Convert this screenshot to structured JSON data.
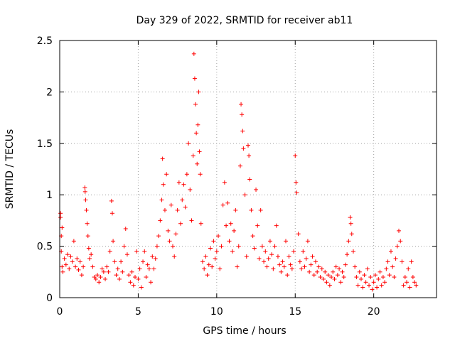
{
  "chart_data": {
    "type": "scatter",
    "title": "Day 329 of 2022, SRMTID for receiver ab11",
    "xlabel": "GPS time / hours",
    "ylabel": "SRMTID / TECUs",
    "xlim": [
      0,
      24
    ],
    "ylim": [
      0,
      2.5
    ],
    "grid": true,
    "marker": "+",
    "point_color": "#ff0000",
    "x_ticks": [
      0,
      5,
      10,
      15,
      20
    ],
    "x_tick_labels": [
      "0",
      "5",
      "10",
      "15",
      "20"
    ],
    "y_ticks": [
      0,
      0.5,
      1,
      1.5,
      2,
      2.5
    ],
    "y_tick_labels": [
      "0",
      "0.5",
      "1",
      "1.5",
      "2",
      "2.5"
    ],
    "series": [
      {
        "name": "ab11",
        "points": [
          [
            0.05,
            0.82
          ],
          [
            0.05,
            0.78
          ],
          [
            0.1,
            0.6
          ],
          [
            0.1,
            0.45
          ],
          [
            0.15,
            0.3
          ],
          [
            0.15,
            0.68
          ],
          [
            0.2,
            0.25
          ],
          [
            0.3,
            0.38
          ],
          [
            0.4,
            0.32
          ],
          [
            0.5,
            0.42
          ],
          [
            0.6,
            0.28
          ],
          [
            0.7,
            0.4
          ],
          [
            0.8,
            0.35
          ],
          [
            0.9,
            0.55
          ],
          [
            1.0,
            0.3
          ],
          [
            1.1,
            0.38
          ],
          [
            1.2,
            0.27
          ],
          [
            1.3,
            0.35
          ],
          [
            1.4,
            0.22
          ],
          [
            1.5,
            0.3
          ],
          [
            1.6,
            1.07
          ],
          [
            1.62,
            1.03
          ],
          [
            1.65,
            0.95
          ],
          [
            1.7,
            0.85
          ],
          [
            1.75,
            0.72
          ],
          [
            1.8,
            0.6
          ],
          [
            1.85,
            0.48
          ],
          [
            1.9,
            0.38
          ],
          [
            2.0,
            0.42
          ],
          [
            2.1,
            0.3
          ],
          [
            2.2,
            0.2
          ],
          [
            2.3,
            0.18
          ],
          [
            2.4,
            0.22
          ],
          [
            2.5,
            0.15
          ],
          [
            2.6,
            0.2
          ],
          [
            2.7,
            0.28
          ],
          [
            2.8,
            0.25
          ],
          [
            2.9,
            0.18
          ],
          [
            3.0,
            0.3
          ],
          [
            3.1,
            0.25
          ],
          [
            3.2,
            0.45
          ],
          [
            3.3,
            0.94
          ],
          [
            3.35,
            0.82
          ],
          [
            3.4,
            0.55
          ],
          [
            3.5,
            0.35
          ],
          [
            3.6,
            0.22
          ],
          [
            3.7,
            0.28
          ],
          [
            3.8,
            0.18
          ],
          [
            3.9,
            0.35
          ],
          [
            4.0,
            0.25
          ],
          [
            4.1,
            0.5
          ],
          [
            4.2,
            0.67
          ],
          [
            4.3,
            0.42
          ],
          [
            4.4,
            0.22
          ],
          [
            4.5,
            0.15
          ],
          [
            4.6,
            0.25
          ],
          [
            4.7,
            0.12
          ],
          [
            4.8,
            0.2
          ],
          [
            4.9,
            0.45
          ],
          [
            5.0,
            0.18
          ],
          [
            5.1,
            0.28
          ],
          [
            5.2,
            0.1
          ],
          [
            5.3,
            0.35
          ],
          [
            5.4,
            0.45
          ],
          [
            5.5,
            0.2
          ],
          [
            5.6,
            0.32
          ],
          [
            5.7,
            0.28
          ],
          [
            5.8,
            0.15
          ],
          [
            5.9,
            0.4
          ],
          [
            6.0,
            0.28
          ],
          [
            6.1,
            0.38
          ],
          [
            6.2,
            0.5
          ],
          [
            6.3,
            0.6
          ],
          [
            6.4,
            0.75
          ],
          [
            6.5,
            0.95
          ],
          [
            6.55,
            1.35
          ],
          [
            6.6,
            1.1
          ],
          [
            6.7,
            0.85
          ],
          [
            6.8,
            1.2
          ],
          [
            6.9,
            0.65
          ],
          [
            7.0,
            0.55
          ],
          [
            7.1,
            0.9
          ],
          [
            7.2,
            0.5
          ],
          [
            7.3,
            0.4
          ],
          [
            7.4,
            0.62
          ],
          [
            7.5,
            0.85
          ],
          [
            7.6,
            1.12
          ],
          [
            7.7,
            0.72
          ],
          [
            7.8,
            0.95
          ],
          [
            7.9,
            1.1
          ],
          [
            8.0,
            0.88
          ],
          [
            8.1,
            1.2
          ],
          [
            8.2,
            1.5
          ],
          [
            8.3,
            1.05
          ],
          [
            8.4,
            0.75
          ],
          [
            8.5,
            1.38
          ],
          [
            8.55,
            2.37
          ],
          [
            8.6,
            2.13
          ],
          [
            8.65,
            1.88
          ],
          [
            8.7,
            1.6
          ],
          [
            8.75,
            1.3
          ],
          [
            8.8,
            1.68
          ],
          [
            8.85,
            2.0
          ],
          [
            8.9,
            1.42
          ],
          [
            8.95,
            1.2
          ],
          [
            9.0,
            0.72
          ],
          [
            9.1,
            0.35
          ],
          [
            9.2,
            0.28
          ],
          [
            9.3,
            0.4
          ],
          [
            9.4,
            0.22
          ],
          [
            9.5,
            0.32
          ],
          [
            9.6,
            0.48
          ],
          [
            9.7,
            0.3
          ],
          [
            9.8,
            0.55
          ],
          [
            9.9,
            0.38
          ],
          [
            10.0,
            0.45
          ],
          [
            10.1,
            0.6
          ],
          [
            10.2,
            0.28
          ],
          [
            10.3,
            0.5
          ],
          [
            10.4,
            0.9
          ],
          [
            10.5,
            1.12
          ],
          [
            10.6,
            0.7
          ],
          [
            10.7,
            0.92
          ],
          [
            10.8,
            0.55
          ],
          [
            10.9,
            0.72
          ],
          [
            11.0,
            0.45
          ],
          [
            11.1,
            0.65
          ],
          [
            11.2,
            0.85
          ],
          [
            11.3,
            0.3
          ],
          [
            11.4,
            0.5
          ],
          [
            11.5,
            1.28
          ],
          [
            11.55,
            1.88
          ],
          [
            11.6,
            1.78
          ],
          [
            11.65,
            1.62
          ],
          [
            11.7,
            1.45
          ],
          [
            11.8,
            1.0
          ],
          [
            11.9,
            0.4
          ],
          [
            12.0,
            1.48
          ],
          [
            12.05,
            1.38
          ],
          [
            12.1,
            1.15
          ],
          [
            12.2,
            0.85
          ],
          [
            12.3,
            0.6
          ],
          [
            12.4,
            0.48
          ],
          [
            12.5,
            1.05
          ],
          [
            12.6,
            0.7
          ],
          [
            12.7,
            0.38
          ],
          [
            12.8,
            0.85
          ],
          [
            12.9,
            0.5
          ],
          [
            13.0,
            0.35
          ],
          [
            13.1,
            0.45
          ],
          [
            13.2,
            0.3
          ],
          [
            13.3,
            0.38
          ],
          [
            13.4,
            0.55
          ],
          [
            13.5,
            0.42
          ],
          [
            13.6,
            0.28
          ],
          [
            13.7,
            0.5
          ],
          [
            13.8,
            0.7
          ],
          [
            13.9,
            0.4
          ],
          [
            14.0,
            0.32
          ],
          [
            14.1,
            0.25
          ],
          [
            14.2,
            0.35
          ],
          [
            14.3,
            0.3
          ],
          [
            14.4,
            0.55
          ],
          [
            14.5,
            0.22
          ],
          [
            14.6,
            0.4
          ],
          [
            14.7,
            0.32
          ],
          [
            14.8,
            0.28
          ],
          [
            14.9,
            0.45
          ],
          [
            15.0,
            1.38
          ],
          [
            15.05,
            1.12
          ],
          [
            15.1,
            1.02
          ],
          [
            15.2,
            0.62
          ],
          [
            15.3,
            0.35
          ],
          [
            15.4,
            0.28
          ],
          [
            15.5,
            0.45
          ],
          [
            15.6,
            0.3
          ],
          [
            15.7,
            0.38
          ],
          [
            15.8,
            0.55
          ],
          [
            15.9,
            0.25
          ],
          [
            16.0,
            0.32
          ],
          [
            16.1,
            0.4
          ],
          [
            16.2,
            0.22
          ],
          [
            16.3,
            0.35
          ],
          [
            16.4,
            0.25
          ],
          [
            16.5,
            0.3
          ],
          [
            16.6,
            0.2
          ],
          [
            16.7,
            0.28
          ],
          [
            16.8,
            0.18
          ],
          [
            16.9,
            0.25
          ],
          [
            17.0,
            0.15
          ],
          [
            17.1,
            0.22
          ],
          [
            17.2,
            0.12
          ],
          [
            17.3,
            0.2
          ],
          [
            17.4,
            0.25
          ],
          [
            17.5,
            0.18
          ],
          [
            17.6,
            0.3
          ],
          [
            17.7,
            0.22
          ],
          [
            17.8,
            0.28
          ],
          [
            17.9,
            0.15
          ],
          [
            18.0,
            0.25
          ],
          [
            18.1,
            0.2
          ],
          [
            18.2,
            0.32
          ],
          [
            18.3,
            0.42
          ],
          [
            18.4,
            0.55
          ],
          [
            18.5,
            0.78
          ],
          [
            18.55,
            0.72
          ],
          [
            18.6,
            0.62
          ],
          [
            18.7,
            0.45
          ],
          [
            18.8,
            0.3
          ],
          [
            18.9,
            0.2
          ],
          [
            19.0,
            0.12
          ],
          [
            19.1,
            0.25
          ],
          [
            19.2,
            0.18
          ],
          [
            19.3,
            0.1
          ],
          [
            19.4,
            0.22
          ],
          [
            19.5,
            0.15
          ],
          [
            19.6,
            0.28
          ],
          [
            19.7,
            0.12
          ],
          [
            19.8,
            0.2
          ],
          [
            19.9,
            0.08
          ],
          [
            20.0,
            0.15
          ],
          [
            20.1,
            0.22
          ],
          [
            20.2,
            0.1
          ],
          [
            20.3,
            0.18
          ],
          [
            20.4,
            0.25
          ],
          [
            20.5,
            0.12
          ],
          [
            20.6,
            0.2
          ],
          [
            20.7,
            0.15
          ],
          [
            20.8,
            0.28
          ],
          [
            20.9,
            0.35
          ],
          [
            21.0,
            0.22
          ],
          [
            21.1,
            0.45
          ],
          [
            21.2,
            0.3
          ],
          [
            21.3,
            0.2
          ],
          [
            21.4,
            0.38
          ],
          [
            21.5,
            0.5
          ],
          [
            21.6,
            0.65
          ],
          [
            21.7,
            0.55
          ],
          [
            21.8,
            0.35
          ],
          [
            21.9,
            0.12
          ],
          [
            22.0,
            0.2
          ],
          [
            22.1,
            0.15
          ],
          [
            22.2,
            0.28
          ],
          [
            22.3,
            0.1
          ],
          [
            22.4,
            0.35
          ],
          [
            22.5,
            0.2
          ],
          [
            22.6,
            0.15
          ],
          [
            22.7,
            0.12
          ]
        ]
      }
    ]
  }
}
